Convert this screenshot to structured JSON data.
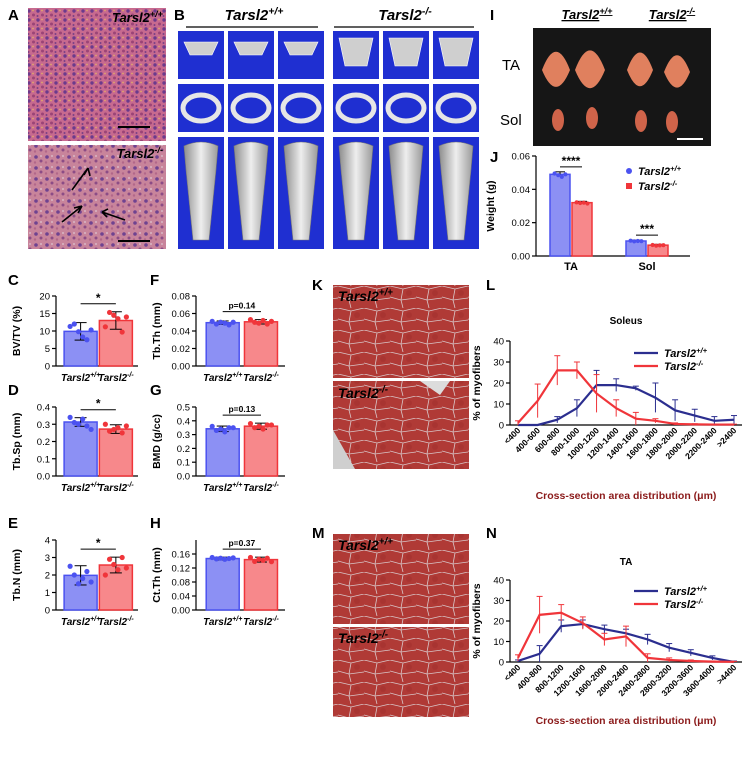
{
  "colors": {
    "wt": "#4b52f0",
    "ko": "#f0353a",
    "wt_line": "#2b2e8f",
    "ko_line": "#f0353a",
    "wt_fill": "#8c90f4",
    "ko_fill": "#f7888b",
    "xtitle": "#8B1A1A",
    "ct_bg": "#1f2fd1"
  },
  "genotypes": {
    "wt": "Tarsl2+/+",
    "ko": "Tarsl2-/-"
  },
  "panels": {
    "A": "A",
    "B": "B",
    "C": "C",
    "D": "D",
    "E": "E",
    "F": "F",
    "G": "G",
    "H": "H",
    "I": "I",
    "J": "J",
    "K": "K",
    "L": "L",
    "M": "M",
    "N": "N"
  },
  "muscle_labels": {
    "ta": "TA",
    "sol": "Sol"
  },
  "chart_data": [
    {
      "id": "C",
      "type": "bar",
      "ylabel": "BV/TV (%)",
      "ylim": [
        0,
        20
      ],
      "yticks": [
        0,
        5,
        10,
        15,
        20
      ],
      "categories": [
        "Tarsl2+/+",
        "Tarsl2-/-"
      ],
      "values": [
        9.9,
        13.0
      ],
      "errors": [
        2.5,
        2.5
      ],
      "significance": "*",
      "points": [
        [
          11.3,
          12.0,
          9.8,
          8.3,
          7.5,
          10.3
        ],
        [
          11.2,
          15.3,
          14.5,
          13.5,
          9.7,
          14.0
        ]
      ]
    },
    {
      "id": "D",
      "type": "bar",
      "ylabel": "Tb.Sp (mm)",
      "ylim": [
        0,
        0.4
      ],
      "yticks": [
        0.0,
        0.1,
        0.2,
        0.3,
        0.4
      ],
      "categories": [
        "Tarsl2+/+",
        "Tarsl2-/-"
      ],
      "values": [
        0.313,
        0.272
      ],
      "errors": [
        0.025,
        0.025
      ],
      "significance": "*",
      "points": [
        [
          0.34,
          0.31,
          0.3,
          0.33,
          0.29,
          0.27
        ],
        [
          0.3,
          0.26,
          0.27,
          0.28,
          0.25,
          0.29
        ]
      ]
    },
    {
      "id": "E",
      "type": "bar",
      "ylabel": "Tb.N (mm)",
      "ylim": [
        0,
        4
      ],
      "yticks": [
        0,
        1,
        2,
        3,
        4
      ],
      "categories": [
        "Tarsl2+/+",
        "Tarsl2-/-"
      ],
      "values": [
        1.98,
        2.57
      ],
      "errors": [
        0.55,
        0.45
      ],
      "significance": "*",
      "points": [
        [
          2.5,
          2.0,
          1.5,
          1.8,
          2.2,
          1.6
        ],
        [
          2.0,
          2.9,
          2.6,
          2.3,
          3.0,
          2.4
        ]
      ]
    },
    {
      "id": "F",
      "type": "bar",
      "ylabel": "Tb.Th (mm)",
      "ylim": [
        0,
        0.08
      ],
      "yticks": [
        0.0,
        0.02,
        0.04,
        0.06,
        0.08
      ],
      "categories": [
        "Tarsl2+/+",
        "Tarsl2-/-"
      ],
      "values": [
        0.0495,
        0.0505
      ],
      "errors": [
        0.002,
        0.0025
      ],
      "significance": "p=0.14",
      "points": [
        [
          0.051,
          0.048,
          0.05,
          0.049,
          0.047,
          0.05
        ],
        [
          0.053,
          0.05,
          0.049,
          0.052,
          0.048,
          0.051
        ]
      ]
    },
    {
      "id": "G",
      "type": "bar",
      "ylabel": "BMD (g/cc)",
      "ylim": [
        0,
        0.5
      ],
      "yticks": [
        0.0,
        0.1,
        0.2,
        0.3,
        0.4,
        0.5
      ],
      "categories": [
        "Tarsl2+/+",
        "Tarsl2-/-"
      ],
      "values": [
        0.342,
        0.361
      ],
      "errors": [
        0.02,
        0.022
      ],
      "significance": "p=0.13",
      "points": [
        [
          0.36,
          0.33,
          0.34,
          0.32,
          0.35,
          0.35
        ],
        [
          0.38,
          0.35,
          0.36,
          0.34,
          0.37,
          0.37
        ]
      ]
    },
    {
      "id": "H",
      "type": "bar",
      "ylabel": "Ct.Th (mm)",
      "ylim": [
        0,
        0.2
      ],
      "yticks": [
        0.0,
        0.04,
        0.08,
        0.12,
        0.16
      ],
      "categories": [
        "Tarsl2+/+",
        "Tarsl2-/-"
      ],
      "values": [
        0.147,
        0.144
      ],
      "errors": [
        0.004,
        0.007
      ],
      "significance": "p=0.37",
      "points": [
        [
          0.15,
          0.146,
          0.148,
          0.145,
          0.147,
          0.149
        ],
        [
          0.15,
          0.139,
          0.145,
          0.142,
          0.148,
          0.138
        ]
      ]
    },
    {
      "id": "J",
      "type": "bar",
      "ylabel": "Weight (g)",
      "ylim": [
        0,
        0.06
      ],
      "yticks": [
        0.0,
        0.02,
        0.04,
        0.06
      ],
      "categories": [
        "TA",
        "Sol"
      ],
      "series": [
        {
          "name": "Tarsl2+/+",
          "values": [
            0.049,
            0.009
          ],
          "errors": [
            0.0015,
            0.0005
          ]
        },
        {
          "name": "Tarsl2-/-",
          "values": [
            0.032,
            0.0065
          ],
          "errors": [
            0.0008,
            0.0005
          ]
        }
      ],
      "significance": [
        "****",
        "***"
      ],
      "points": [
        [
          [
            0.0495,
            0.0485,
            0.0475,
            0.049
          ],
          [
            0.0092,
            0.0088,
            0.009,
            0.0089
          ]
        ],
        [
          [
            0.0322,
            0.0318,
            0.032,
            0.0315
          ],
          [
            0.0066,
            0.0062,
            0.0064,
            0.0065
          ]
        ]
      ]
    },
    {
      "id": "L",
      "type": "line",
      "title": "Soleus",
      "ylabel": "% of myofibers",
      "xlabel": "Cross-section area distribution (μm)",
      "ylim": [
        0,
        40
      ],
      "yticks": [
        0,
        10,
        20,
        30,
        40
      ],
      "categories": [
        "<400",
        "400-600",
        "600-800",
        "800-1000",
        "1000-1200",
        "1200-1400",
        "1400-1600",
        "1600-1800",
        "1800-2000",
        "2000-2200",
        "2200-2400",
        ">2400"
      ],
      "series": [
        {
          "name": "Tarsl2+/+",
          "values": [
            0,
            0,
            2.5,
            8,
            19,
            19,
            17.5,
            13,
            7,
            4.5,
            2,
            2.5
          ],
          "errors": [
            0,
            0,
            1.5,
            4,
            7,
            3,
            1,
            7,
            5,
            3,
            2,
            2
          ]
        },
        {
          "name": "Tarsl2-/-",
          "values": [
            1,
            11.5,
            26,
            26,
            15,
            8,
            3,
            2,
            0.5,
            0.3,
            0.2,
            0.2
          ],
          "errors": [
            1,
            8,
            7,
            4,
            9,
            4,
            3,
            1,
            0.5,
            0.3,
            0.2,
            0.2
          ]
        }
      ]
    },
    {
      "id": "N",
      "type": "line",
      "title": "TA",
      "ylabel": "% of myofibers",
      "xlabel": "Cross-section area distribution (μm)",
      "ylim": [
        0,
        40
      ],
      "yticks": [
        0,
        10,
        20,
        30,
        40
      ],
      "categories": [
        "<400",
        "400-800",
        "800-1200",
        "1200-1600",
        "1600-2000",
        "2000-2400",
        "2400-2800",
        "2800-3200",
        "3200-3600",
        "3600-4000",
        ">4400"
      ],
      "series": [
        {
          "name": "Tarsl2+/+",
          "values": [
            0.5,
            4,
            17.5,
            18.5,
            16,
            14,
            11,
            7,
            4.5,
            2,
            0
          ],
          "errors": [
            0.5,
            4,
            3,
            2,
            2,
            2,
            2.5,
            2,
            1.5,
            1,
            0.5
          ]
        },
        {
          "name": "Tarsl2-/-",
          "values": [
            2,
            23,
            24,
            19,
            11,
            12.5,
            2,
            1,
            0.5,
            0.2,
            0.1
          ],
          "errors": [
            1.5,
            9,
            4,
            3,
            3,
            5,
            2,
            1,
            0.5,
            0.3,
            0.2
          ]
        }
      ]
    }
  ]
}
